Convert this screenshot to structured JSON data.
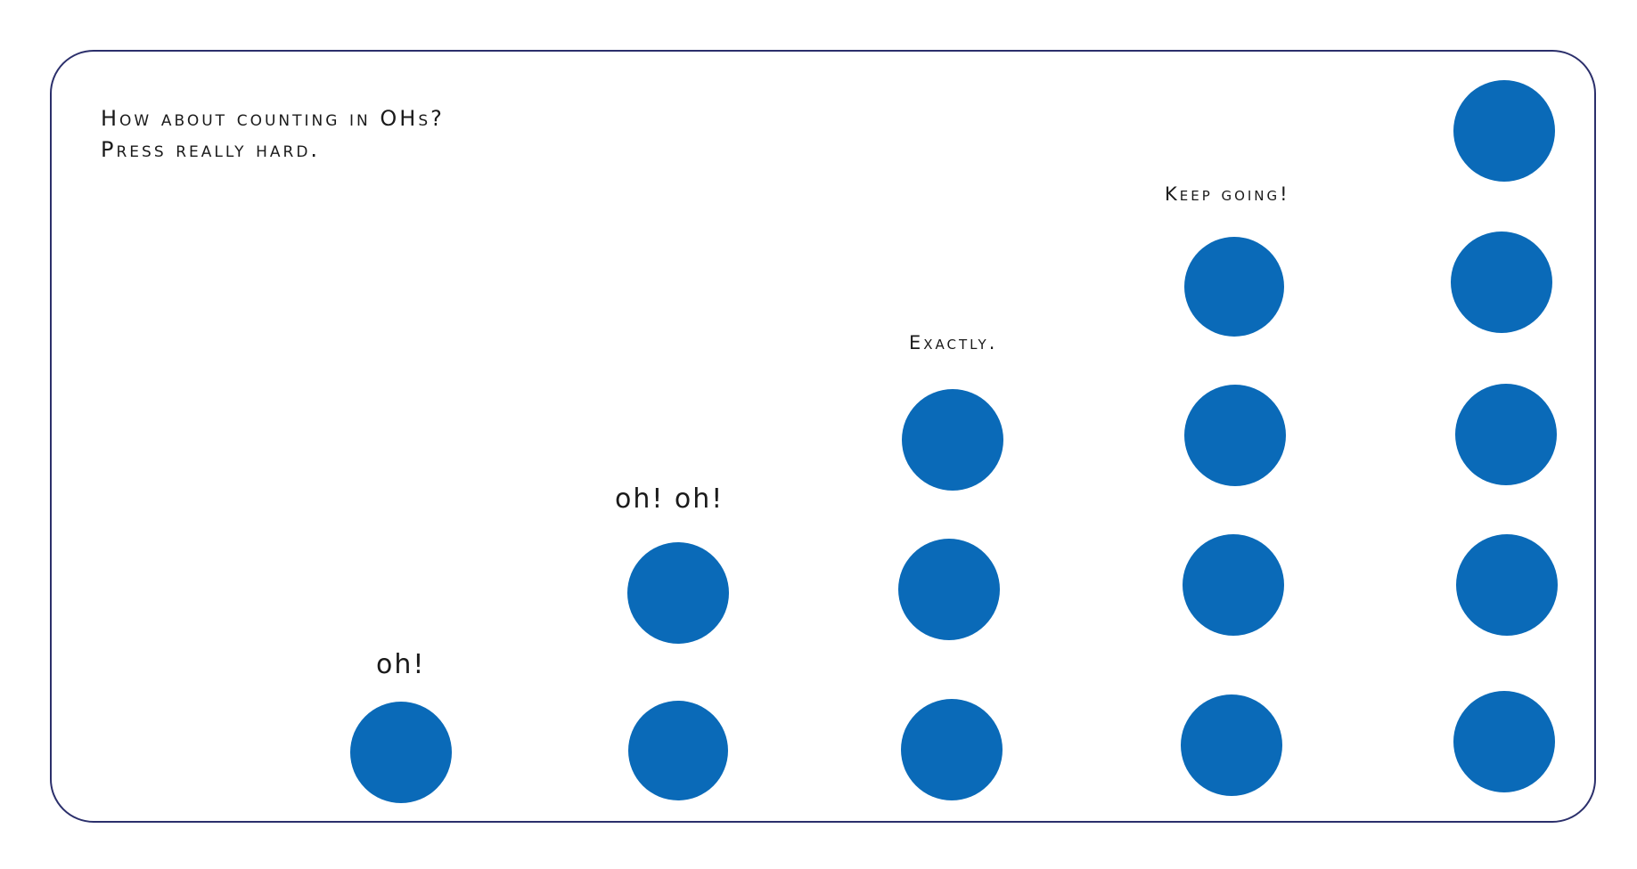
{
  "page": {
    "intro": [
      "How about counting in OHs?",
      "Press really hard."
    ],
    "labels": [
      "oh!",
      "oh! oh!",
      "Exactly.",
      "Keep going!"
    ]
  }
}
